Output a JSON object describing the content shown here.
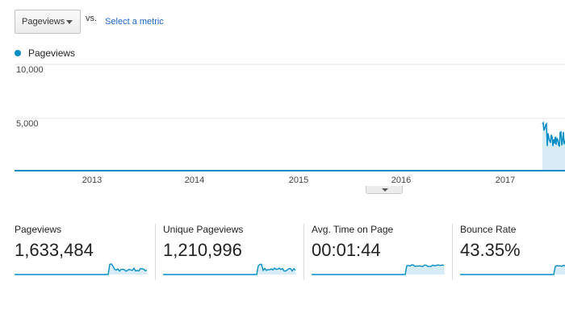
{
  "metric_selector": {
    "selected": "Pageviews",
    "vs_label": "vs.",
    "select_metric_link": "Select a metric"
  },
  "legend": {
    "label": "Pageviews",
    "color": "#058dc7"
  },
  "chart_data": {
    "type": "area",
    "series": [
      {
        "name": "Pageviews",
        "x": [
          "2012-05",
          "2013-01",
          "2014-01",
          "2015-01",
          "2016-01",
          "2017-01",
          "2017-06",
          "2017-07",
          "2017-07",
          "2017-08",
          "2017-09",
          "2017-10",
          "2017-11"
        ],
        "values": [
          0,
          0,
          0,
          0,
          0,
          0,
          0,
          0,
          4200,
          3100,
          3400,
          2600,
          3300
        ]
      }
    ],
    "yticks": [
      "10,000",
      "5,000"
    ],
    "xticks": [
      "2013",
      "2014",
      "2015",
      "2016",
      "2017"
    ],
    "ylim": [
      0,
      10000
    ],
    "grid": true
  },
  "summary": [
    {
      "title": "Pageviews",
      "value": "1,633,484"
    },
    {
      "title": "Unique Pageviews",
      "value": "1,210,996"
    },
    {
      "title": "Avg. Time on Page",
      "value": "00:01:44"
    },
    {
      "title": "Bounce Rate",
      "value": "43.35%"
    }
  ]
}
